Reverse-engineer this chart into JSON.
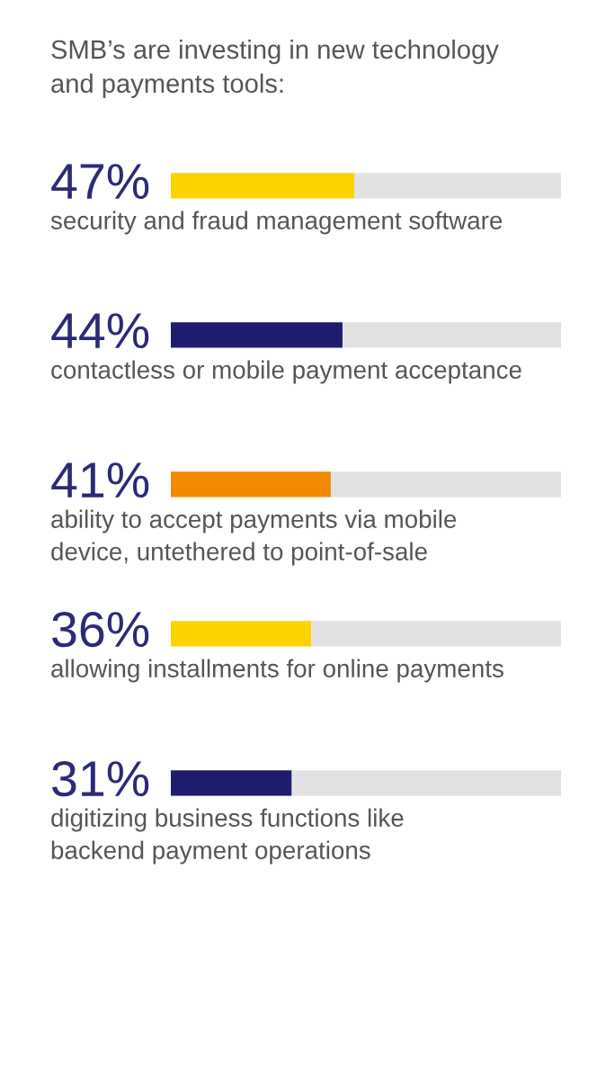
{
  "chart_data": {
    "type": "bar",
    "orientation": "horizontal",
    "stacked": true,
    "title": "SMB’s are investing in new technology\nand payments tools:",
    "categories": [
      "security and fraud management software",
      "contactless or mobile payment acceptance",
      "ability to accept payments via mobile\ndevice, untethered to point-of-sale",
      "allowing installments for online payments",
      "digitizing business functions like\nbackend payment operations"
    ],
    "series": [
      {
        "colors": [
          "#fcd200",
          "#1e1c6e",
          "#f28a00",
          "#fcd200",
          "#1e1c6e"
        ],
        "values": [
          47,
          44,
          41,
          36,
          31
        ],
        "value_labels": [
          "47%",
          "44%",
          "41%",
          "36%",
          "31%"
        ]
      },
      {
        "color": "#e2e2e2",
        "values": [
          53,
          56,
          59,
          64,
          69
        ]
      }
    ],
    "xlim": [
      0,
      100
    ]
  }
}
